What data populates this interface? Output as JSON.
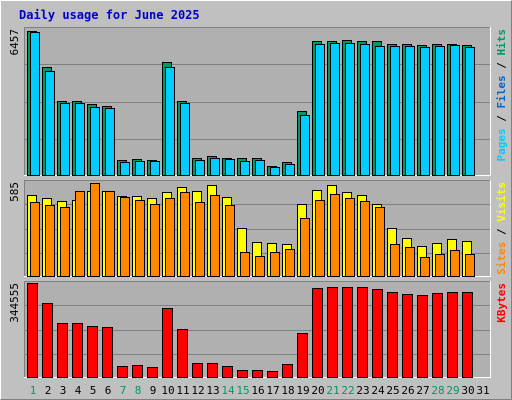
{
  "chart_data": {
    "type": "bar",
    "title": "Daily usage for June 2025",
    "categories": [
      "1",
      "2",
      "3",
      "4",
      "5",
      "6",
      "7",
      "8",
      "9",
      "10",
      "11",
      "12",
      "13",
      "14",
      "15",
      "16",
      "17",
      "18",
      "19",
      "20",
      "21",
      "22",
      "23",
      "24",
      "25",
      "26",
      "27",
      "28",
      "29",
      "30",
      "31"
    ],
    "weekend_days": [
      "1",
      "7",
      "8",
      "14",
      "15",
      "21",
      "22",
      "28",
      "29"
    ],
    "colors": {
      "background": "#c0c0c0",
      "plot_background": "#b0b0b0",
      "title": "#0000cc",
      "pages": "#00ccff",
      "files": "#0066cc",
      "hits": "#009966",
      "sites": "#ff8800",
      "visits": "#ffff00",
      "kbytes": "#ff0000",
      "weekend_label": "#009966",
      "weekday_label": "#000000"
    },
    "panels": [
      {
        "id": "hits-files-pages",
        "max_label": "6457",
        "max_value": 6457,
        "legend": [
          {
            "text": "Pages",
            "color": "#00ccff"
          },
          {
            "text": " / ",
            "color": "#000000"
          },
          {
            "text": "Files",
            "color": "#0066cc"
          },
          {
            "text": " / ",
            "color": "#000000"
          },
          {
            "text": "Hits",
            "color": "#009966"
          }
        ],
        "series": [
          {
            "name": "Hits",
            "color": "#009966",
            "values": [
              6330,
              4730,
              3260,
              3260,
              3100,
              3020,
              670,
              710,
              680,
              4950,
              3260,
              730,
              820,
              760,
              750,
              750,
              390,
              580,
              2800,
              5880,
              5900,
              5920,
              5900,
              5890,
              5770,
              5750,
              5720,
              5740,
              5760,
              5720,
              null
            ]
          },
          {
            "name": "Pages",
            "color": "#00ccff",
            "values": [
              6270,
              4560,
              3160,
              3160,
              3000,
              2960,
              560,
              630,
              600,
              4730,
              3160,
              640,
              760,
              710,
              620,
              660,
              330,
              490,
              2640,
              5740,
              5790,
              5810,
              5770,
              5680,
              5650,
              5660,
              5630,
              5660,
              5690,
              5620,
              null
            ]
          }
        ]
      },
      {
        "id": "visits-sites",
        "max_label": "585",
        "max_value": 585,
        "legend": [
          {
            "text": "Sites",
            "color": "#ff8800"
          },
          {
            "text": " / ",
            "color": "#000000"
          },
          {
            "text": "Visits",
            "color": "#ffff00"
          }
        ],
        "series": [
          {
            "name": "Visits",
            "color": "#ffff00",
            "values": [
              500,
              480,
              460,
              470,
              525,
              525,
              490,
              495,
              480,
              515,
              545,
              525,
              560,
              485,
              295,
              210,
              205,
              200,
              445,
              530,
              560,
              515,
              500,
              445,
              295,
              235,
              185,
              205,
              225,
              215,
              null
            ]
          },
          {
            "name": "Sites",
            "color": "#ff8800",
            "values": [
              455,
              440,
              425,
              525,
              570,
              525,
              485,
              465,
              445,
              480,
              515,
              455,
              500,
              440,
              150,
              125,
              145,
              165,
              360,
              470,
              505,
              480,
              460,
              425,
              200,
              180,
              120,
              135,
              160,
              135,
              null
            ]
          }
        ]
      },
      {
        "id": "kbytes",
        "max_label": "344555",
        "max_value": 344555,
        "legend": [
          {
            "text": "KBytes",
            "color": "#ff0000"
          }
        ],
        "series": [
          {
            "name": "KBytes",
            "color": "#ff0000",
            "values": [
              340000,
              270000,
              195000,
              195000,
              185000,
              180000,
              40000,
              42000,
              38000,
              250000,
              175000,
              52000,
              52000,
              40000,
              24000,
              24000,
              22000,
              48000,
              160000,
              324000,
              328000,
              328000,
              328000,
              320000,
              310000,
              300000,
              298000,
              306000,
              308000,
              308000,
              null
            ]
          }
        ]
      }
    ]
  }
}
